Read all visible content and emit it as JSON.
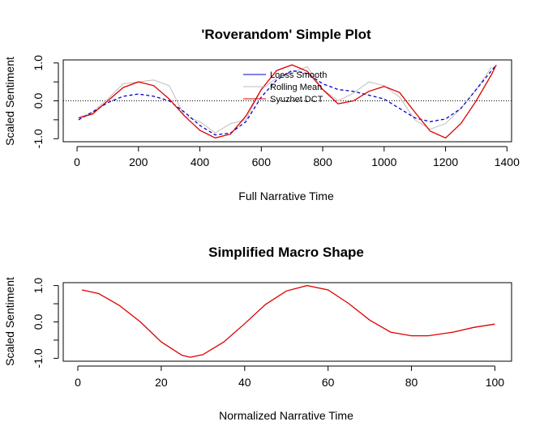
{
  "colors": {
    "loess": "#0000cc",
    "rolling": "#bebebe",
    "dct": "#dd0000",
    "zero_line": "#000000"
  },
  "chart_data": [
    {
      "type": "line",
      "title": "'Roverandom' Simple Plot",
      "xlabel": "Full Narrative Time",
      "ylabel": "Scaled Sentiment",
      "xlim": [
        -45,
        1415
      ],
      "ylim": [
        -1.08,
        1.08
      ],
      "x_ticks": [
        0,
        200,
        400,
        600,
        800,
        1000,
        1200,
        1400
      ],
      "y_ticks": [
        -1.0,
        0.0,
        1.0
      ],
      "y_tick_labels": [
        "-1.0",
        "0.0",
        "1.0"
      ],
      "reference_line_y": 0,
      "legend": {
        "position": "top-center",
        "entries": [
          "Loess Smooth",
          "Rolling Mean",
          "Syuzhet DCT"
        ]
      },
      "series": [
        {
          "name": "Loess Smooth",
          "style": "dashed",
          "x": [
            5,
            50,
            100,
            150,
            200,
            250,
            300,
            350,
            400,
            450,
            500,
            550,
            600,
            650,
            700,
            750,
            800,
            850,
            900,
            950,
            1000,
            1050,
            1100,
            1150,
            1200,
            1250,
            1300,
            1350,
            1365
          ],
          "y": [
            -0.5,
            -0.3,
            -0.05,
            0.12,
            0.18,
            0.12,
            0.0,
            -0.3,
            -0.65,
            -0.9,
            -0.85,
            -0.55,
            0.1,
            0.55,
            0.8,
            0.72,
            0.45,
            0.3,
            0.25,
            0.15,
            0.05,
            -0.2,
            -0.45,
            -0.55,
            -0.48,
            -0.2,
            0.3,
            0.8,
            0.95
          ]
        },
        {
          "name": "Rolling Mean",
          "style": "solid",
          "x": [
            5,
            50,
            100,
            150,
            200,
            250,
            300,
            350,
            400,
            450,
            500,
            550,
            600,
            650,
            700,
            750,
            800,
            850,
            900,
            950,
            1000,
            1050,
            1100,
            1150,
            1200,
            1250,
            1300,
            1350
          ],
          "y": [
            -0.45,
            -0.3,
            0.05,
            0.45,
            0.5,
            0.55,
            0.4,
            -0.4,
            -0.55,
            -0.85,
            -0.6,
            -0.5,
            0.3,
            0.6,
            0.75,
            0.9,
            0.3,
            0.0,
            0.2,
            0.5,
            0.4,
            0.1,
            -0.5,
            -0.75,
            -0.6,
            -0.2,
            0.3,
            0.9
          ]
        },
        {
          "name": "Syuzhet DCT",
          "style": "solid",
          "x": [
            5,
            50,
            100,
            150,
            200,
            250,
            300,
            350,
            400,
            450,
            500,
            550,
            600,
            650,
            700,
            750,
            800,
            850,
            900,
            950,
            1000,
            1050,
            1100,
            1150,
            1200,
            1250,
            1300,
            1350,
            1365
          ],
          "y": [
            -0.45,
            -0.35,
            0.0,
            0.35,
            0.5,
            0.4,
            0.05,
            -0.4,
            -0.78,
            -0.98,
            -0.88,
            -0.4,
            0.3,
            0.8,
            0.95,
            0.78,
            0.3,
            -0.08,
            0.0,
            0.25,
            0.38,
            0.22,
            -0.3,
            -0.8,
            -0.98,
            -0.6,
            0.0,
            0.7,
            0.95
          ]
        }
      ]
    },
    {
      "type": "line",
      "title": "Simplified Macro Shape",
      "xlabel": "Normalized Narrative Time",
      "ylabel": "Scaled Sentiment",
      "xlim": [
        -3.5,
        104
      ],
      "ylim": [
        -1.08,
        1.08
      ],
      "x_ticks": [
        0,
        20,
        40,
        60,
        80,
        100
      ],
      "y_ticks": [
        -1.0,
        0.0,
        1.0
      ],
      "y_tick_labels": [
        "-1.0",
        "0.0",
        "1.0"
      ],
      "series": [
        {
          "style": "solid",
          "x": [
            1,
            5,
            10,
            15,
            20,
            25,
            27,
            30,
            35,
            40,
            45,
            50,
            55,
            60,
            65,
            70,
            75,
            80,
            84,
            90,
            95,
            100
          ],
          "y": [
            0.88,
            0.78,
            0.45,
            0.0,
            -0.55,
            -0.92,
            -0.97,
            -0.9,
            -0.55,
            -0.05,
            0.48,
            0.85,
            1.0,
            0.88,
            0.5,
            0.05,
            -0.28,
            -0.38,
            -0.38,
            -0.28,
            -0.15,
            -0.06
          ]
        }
      ]
    }
  ]
}
